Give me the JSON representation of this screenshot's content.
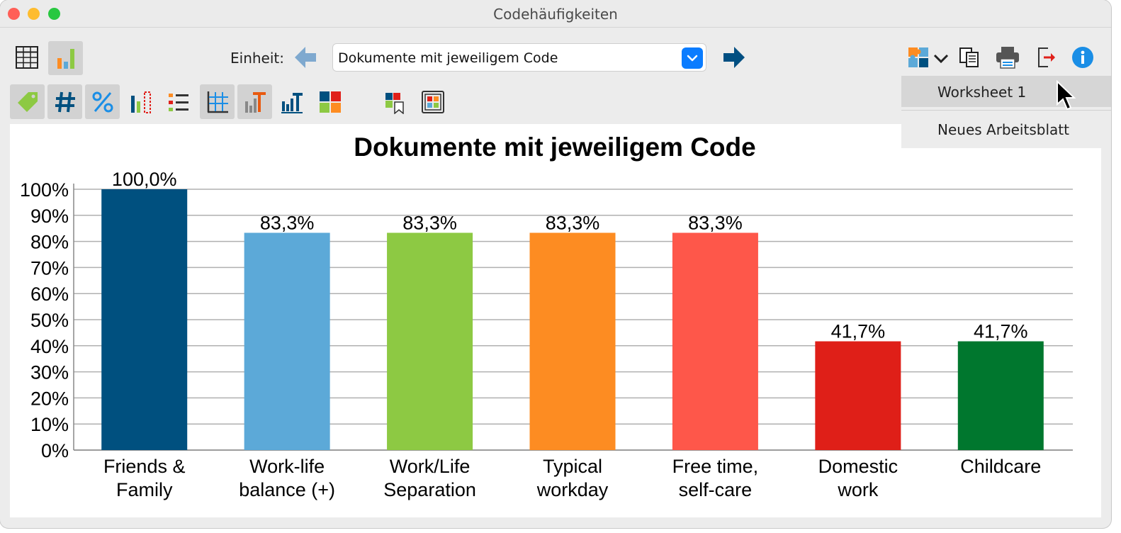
{
  "window": {
    "title": "Codehäufigkeiten"
  },
  "toolbar": {
    "unit_label": "Einheit:",
    "unit_selected": "Dokumente mit jeweiligem Code"
  },
  "menu": {
    "items": [
      {
        "label": "Worksheet 1",
        "selected": true
      },
      {
        "label": "Neues Arbeitsblatt",
        "selected": false
      }
    ]
  },
  "icons": [
    "table-view-icon",
    "chart-view-icon",
    "arrow-left-icon",
    "chevron-down-icon",
    "arrow-right-icon",
    "export-puzzle-icon",
    "dropdown-chevron-icon",
    "copy-icon",
    "print-icon",
    "export-exit-icon",
    "info-icon",
    "tag-icon",
    "hash-icon",
    "percent-icon",
    "bar-legend-icon",
    "list-icon",
    "grid-icon",
    "label-chart-icon",
    "axis-title-icon",
    "color-squares-icon",
    "color-bookmark-icon",
    "frame-colors-icon"
  ],
  "colors": {
    "accent": "#0a7cff",
    "arrow_right": "#004f82",
    "arrow_left": "#7fa9cf",
    "info": "#1a8ee6"
  },
  "chart_data": {
    "type": "bar",
    "title": "Dokumente mit jeweiligem Code",
    "categories": [
      [
        "Friends &",
        "Family"
      ],
      [
        "Work-life",
        "balance (+)"
      ],
      [
        "Work/Life",
        "Separation"
      ],
      [
        "Typical",
        "workday"
      ],
      [
        "Free time,",
        "self-care"
      ],
      [
        "Domestic",
        "work"
      ],
      [
        "Childcare"
      ]
    ],
    "values": [
      100.0,
      83.3,
      83.3,
      83.3,
      83.3,
      41.7,
      41.7
    ],
    "value_labels": [
      "100,0%",
      "83,3%",
      "83,3%",
      "83,3%",
      "83,3%",
      "41,7%",
      "41,7%"
    ],
    "colors": [
      "#00507f",
      "#5ca9d8",
      "#8dc943",
      "#fd8c22",
      "#fe574a",
      "#df1f18",
      "#00772e"
    ],
    "ylim": [
      0,
      100
    ],
    "yticks": [
      0,
      10,
      20,
      30,
      40,
      50,
      60,
      70,
      80,
      90,
      100
    ],
    "ytick_labels": [
      "0%",
      "10%",
      "20%",
      "30%",
      "40%",
      "50%",
      "60%",
      "70%",
      "80%",
      "90%",
      "100%"
    ],
    "grid": true,
    "legend": "none"
  }
}
